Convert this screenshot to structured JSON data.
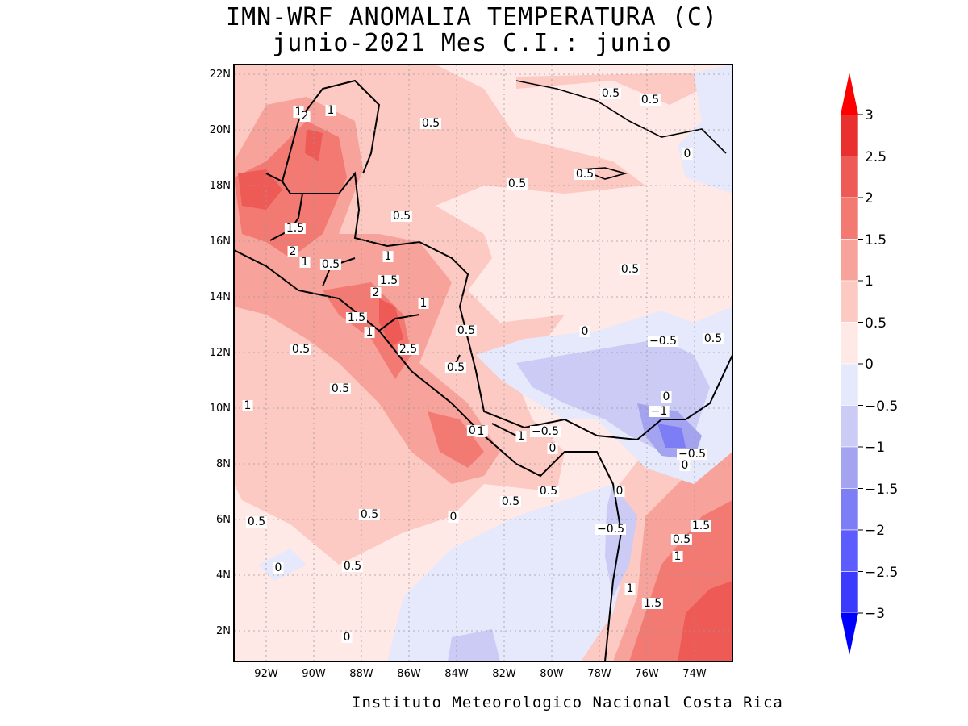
{
  "title": {
    "line1": "IMN-WRF  ANOMALIA TEMPERATURA (C)",
    "line2": "junio-2021 Mes C.I.: junio"
  },
  "map": {
    "lat_labels": [
      "22N",
      "20N",
      "18N",
      "16N",
      "14N",
      "12N",
      "10N",
      "8N",
      "6N",
      "4N",
      "2N"
    ],
    "lon_labels": [
      "92W",
      "90W",
      "88W",
      "86W",
      "84W",
      "82W",
      "80W",
      "78W",
      "76W",
      "74W"
    ],
    "contour_labels": [
      "1",
      "2",
      "1",
      "0.5",
      "0.5",
      "0.5",
      "0.5",
      "0",
      "0.5",
      "0.5",
      "1.5",
      "2",
      "1",
      "0.5",
      "1",
      "1.5",
      "2",
      "1",
      "1.5",
      "1",
      "2.5",
      "0.5",
      "0.5",
      "0.5",
      "0.5",
      "0",
      "−0.5",
      "0.5",
      "1",
      "0.5",
      "0.5",
      "1",
      "1",
      "−0.5",
      "0",
      "0",
      "−1",
      "−0.5",
      "0",
      "0.5",
      "0.5",
      "0",
      "0.5",
      "0.5",
      "0",
      "−0.5",
      "1.5",
      "0.5",
      "1",
      "0.5",
      "1",
      "1.5",
      "0",
      "0"
    ]
  },
  "colorbar": {
    "levels": [
      -3,
      -2.5,
      -2,
      -1.5,
      -1,
      -0.5,
      0,
      0.5,
      1,
      1.5,
      2,
      2.5,
      3
    ],
    "tick_labels": [
      "3",
      "2.5",
      "2",
      "1.5",
      "1",
      "0.5",
      "0",
      "−0.5",
      "−1",
      "−1.5",
      "−2",
      "−2.5",
      "−3"
    ],
    "colors": [
      "#1a1aff",
      "#3b3bff",
      "#5c5cff",
      "#7d7df5",
      "#a3a3f0",
      "#cbcbf5",
      "#e6e8fb",
      "#ffe9e7",
      "#fcc9c3",
      "#f7a29a",
      "#f27a73",
      "#ee5a56",
      "#ea2f2f"
    ],
    "under_color": "#0000ff",
    "over_color": "#ff0000"
  },
  "credit": "Instituto Meteorologico Nacional Costa Rica"
}
